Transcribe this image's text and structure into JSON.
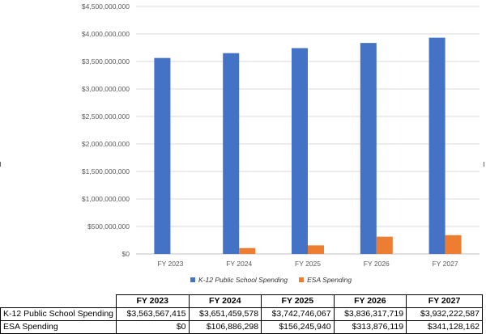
{
  "chart_data": {
    "type": "bar",
    "categories": [
      "FY 2023",
      "FY 2024",
      "FY 2025",
      "FY 2026",
      "FY 2027"
    ],
    "series": [
      {
        "name": "K-12 Public School Spending",
        "color": "#4472C4",
        "values": [
          3563567415,
          3651459578,
          3742746067,
          3836317719,
          3932222587
        ]
      },
      {
        "name": "ESA Spending",
        "color": "#ED7D31",
        "values": [
          0,
          106886298,
          156245940,
          313876119,
          341128162
        ]
      }
    ],
    "ylim": [
      0,
      4500000000
    ],
    "yticks": [
      "$0",
      "$500,000,000",
      "$1,000,000,000",
      "$1,500,000,000",
      "$2,000,000,000",
      "$2,500,000,000",
      "$3,000,000,000",
      "$3,500,000,000",
      "$4,000,000,000",
      "$4,500,000,000"
    ],
    "grid": true,
    "legend_position": "bottom",
    "title": "",
    "xlabel": "",
    "ylabel": ""
  },
  "table": {
    "headers": [
      "FY 2023",
      "FY 2024",
      "FY 2025",
      "FY 2026",
      "FY 2027"
    ],
    "rows": [
      {
        "label": "K-12 Public School Spending",
        "cells": [
          "$3,563,567,415",
          "$3,651,459,578",
          "$3,742,746,067",
          "$3,836,317,719",
          "$3,932,222,587"
        ]
      },
      {
        "label": "ESA Spending",
        "cells": [
          "$0",
          "$106,886,298",
          "$156,245,940",
          "$313,876,119",
          "$341,128,162"
        ]
      }
    ]
  }
}
